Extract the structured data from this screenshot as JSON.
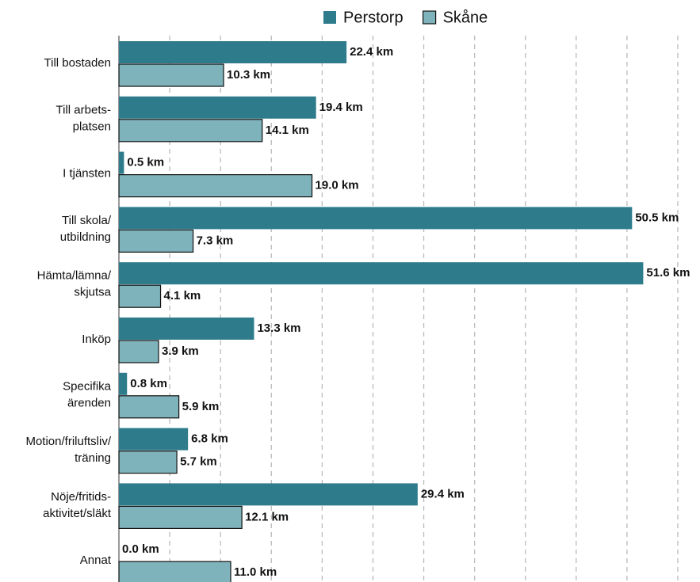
{
  "chart_data": {
    "type": "barh",
    "categories": [
      "Till bostaden",
      "Till arbets-\nplatsen",
      "I tjänsten",
      "Till skola/\nutbildning",
      "Hämta/lämna/\nskjutsa",
      "Inköp",
      "Specifika\närenden",
      "Motion/friluftsliv/\nträning",
      "Nöje/fritids-\naktivitet/släkt",
      "Annat"
    ],
    "series": [
      {
        "name": "Perstorp",
        "color": "#2e7b8c",
        "values": [
          22.4,
          19.4,
          0.5,
          50.5,
          51.6,
          13.3,
          0.8,
          6.8,
          29.4,
          0.0
        ],
        "value_labels": [
          "22.4 km",
          "19.4 km",
          "0.5 km",
          "50.5 km",
          "51.6 km",
          "13.3 km",
          "0.8 km",
          "6.8 km",
          "29.4 km",
          "0.0 km"
        ]
      },
      {
        "name": "Skåne",
        "color": "#7fb3bb",
        "values": [
          10.3,
          14.1,
          19.0,
          7.3,
          4.1,
          3.9,
          5.9,
          5.7,
          12.1,
          11.0
        ],
        "value_labels": [
          "10.3 km",
          "14.1 km",
          "19.0 km",
          "7.3 km",
          "4.1 km",
          "3.9 km",
          "5.9 km",
          "5.7 km",
          "12.1 km",
          "11.0 km"
        ]
      }
    ],
    "xlim": [
      0,
      55
    ],
    "xticks": [
      0,
      5,
      10,
      15,
      20,
      25,
      30,
      35,
      40,
      45,
      50,
      55
    ],
    "grid": true,
    "legend": "top"
  }
}
